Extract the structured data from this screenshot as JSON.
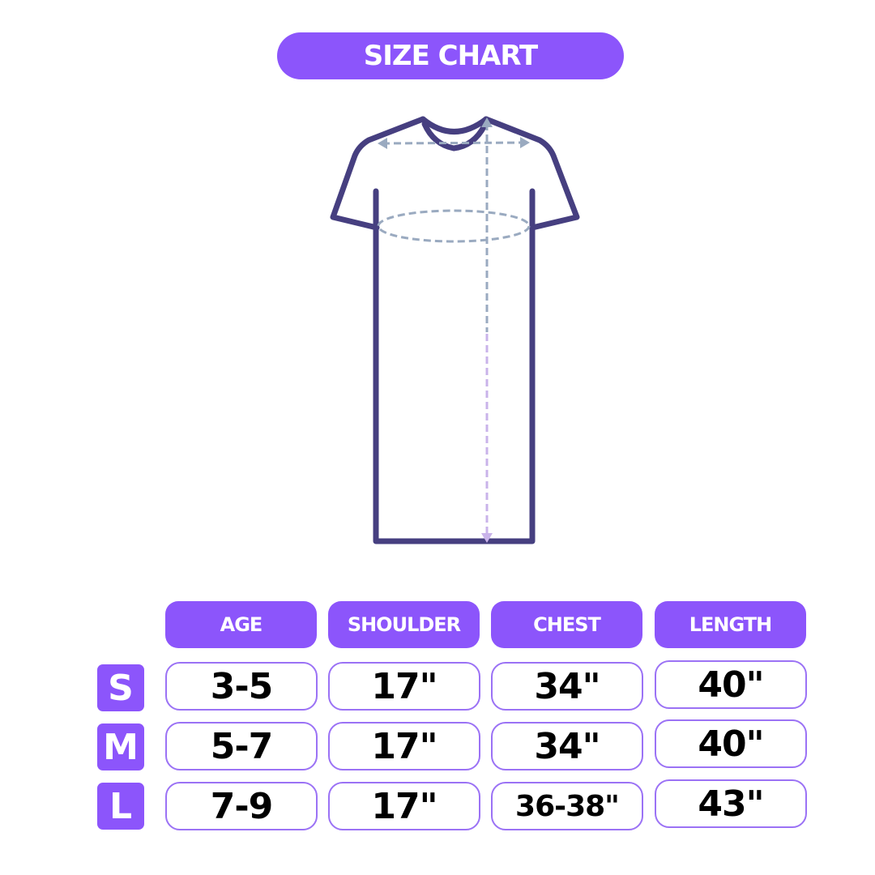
{
  "title": "SIZE CHART",
  "colors": {
    "accent": "#8c55fb",
    "shirt_outline": "#463f80",
    "measure_line": "#9aaac0"
  },
  "shirt_icon": "t-shirt-dress-with-measurement-lines",
  "table": {
    "headers": [
      "AGE",
      "SHOULDER",
      "CHEST",
      "LENGTH"
    ],
    "rows": [
      {
        "size": "S",
        "values": [
          "3-5",
          "17\"",
          "34\"",
          "40\""
        ]
      },
      {
        "size": "M",
        "values": [
          "5-7",
          "17\"",
          "34\"",
          "40\""
        ]
      },
      {
        "size": "L",
        "values": [
          "7-9",
          "17\"",
          "36-38\"",
          "43\""
        ]
      }
    ]
  }
}
